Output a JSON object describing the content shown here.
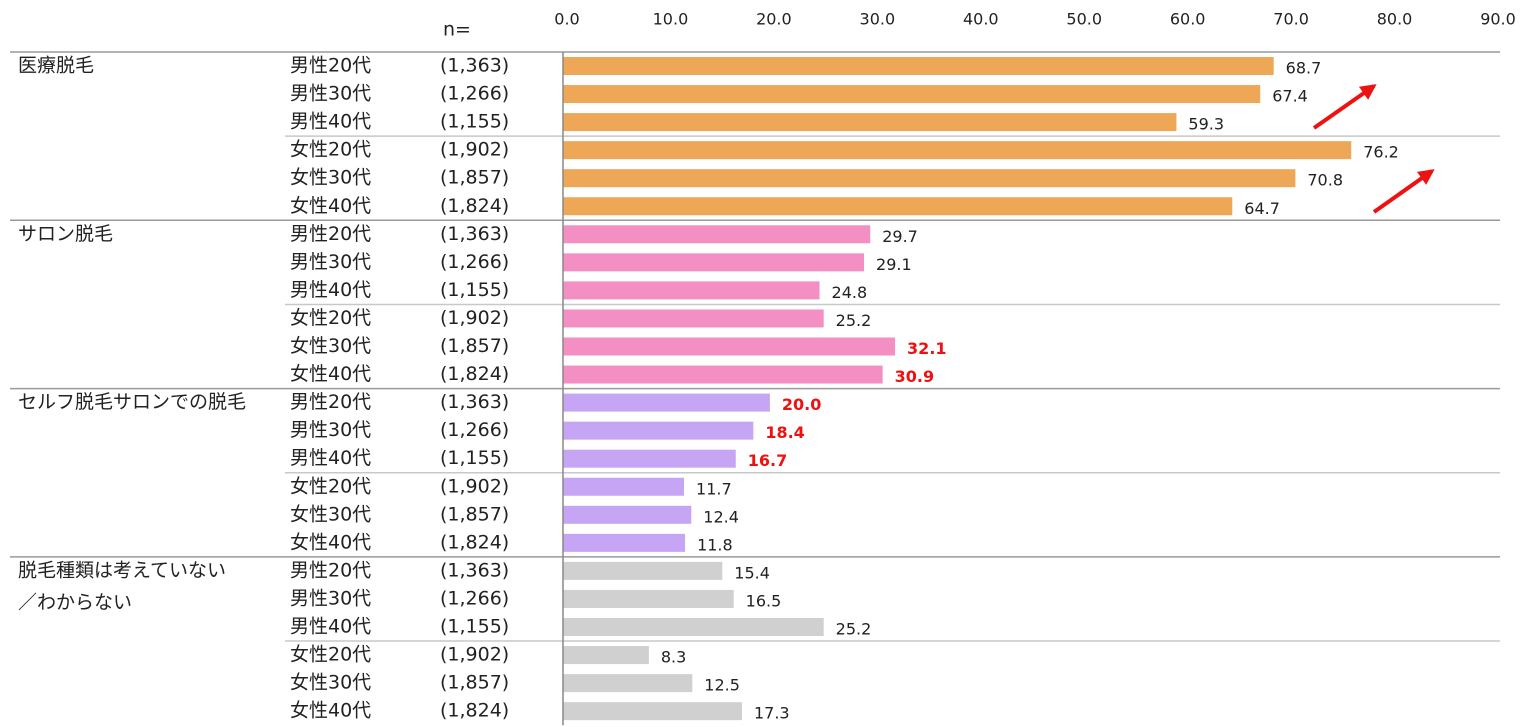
{
  "chart_data": {
    "type": "bar",
    "orientation": "horizontal",
    "n_header": "n=",
    "categories": [
      "男性20代",
      "男性30代",
      "男性40代",
      "女性20代",
      "女性30代",
      "女性40代"
    ],
    "sample_sizes": [
      "(1,363)",
      "(1,266)",
      "(1,155)",
      "(1,902)",
      "(1,857)",
      "(1,824)"
    ],
    "xlim": [
      0,
      90
    ],
    "xticks": [
      {
        "value": 0,
        "label": "0.0"
      },
      {
        "value": 10,
        "label": "10.0"
      },
      {
        "value": 20,
        "label": "20.0"
      },
      {
        "value": 30,
        "label": "30.0"
      },
      {
        "value": 40,
        "label": "40.0"
      },
      {
        "value": 50,
        "label": "50.0"
      },
      {
        "value": 60,
        "label": "60.0"
      },
      {
        "value": 70,
        "label": "70.0"
      },
      {
        "value": 80,
        "label": "80.0"
      },
      {
        "value": 90,
        "label": "90.0"
      }
    ],
    "series": [
      {
        "label_lines": [
          "医療脱毛"
        ],
        "color": "#eda756",
        "values": [
          68.7,
          67.4,
          59.3,
          76.2,
          70.8,
          64.7
        ],
        "value_labels": [
          "68.7",
          "67.4",
          "59.3",
          "76.2",
          "70.8",
          "64.7"
        ],
        "label_colors": [
          "#222222",
          "#222222",
          "#222222",
          "#222222",
          "#222222",
          "#222222"
        ]
      },
      {
        "label_lines": [
          "サロン脱毛"
        ],
        "color": "#f48fc4",
        "values": [
          29.7,
          29.1,
          24.8,
          25.2,
          32.1,
          30.9
        ],
        "value_labels": [
          "29.7",
          "29.1",
          "24.8",
          "25.2",
          "32.1",
          "30.9"
        ],
        "label_colors": [
          "#222222",
          "#222222",
          "#222222",
          "#222222",
          "#ee1111",
          "#ee1111"
        ]
      },
      {
        "label_lines": [
          "セルフ脱毛サロンでの脱毛"
        ],
        "color": "#c6a5f5",
        "values": [
          20.0,
          18.4,
          16.7,
          11.7,
          12.4,
          11.8
        ],
        "value_labels": [
          "20.0",
          "18.4",
          "16.7",
          "11.7",
          "12.4",
          "11.8"
        ],
        "label_colors": [
          "#ee1111",
          "#ee1111",
          "#ee1111",
          "#222222",
          "#222222",
          "#222222"
        ]
      },
      {
        "label_lines": [
          "脱毛種類は考えていない",
          "／わからない"
        ],
        "color": "#d0d0d0",
        "values": [
          15.4,
          16.5,
          25.2,
          8.3,
          12.5,
          17.3
        ],
        "value_labels": [
          "15.4",
          "16.5",
          "25.2",
          "8.3",
          "12.5",
          "17.3"
        ],
        "label_colors": [
          "#222222",
          "#222222",
          "#222222",
          "#222222",
          "#222222",
          "#222222"
        ]
      }
    ]
  }
}
